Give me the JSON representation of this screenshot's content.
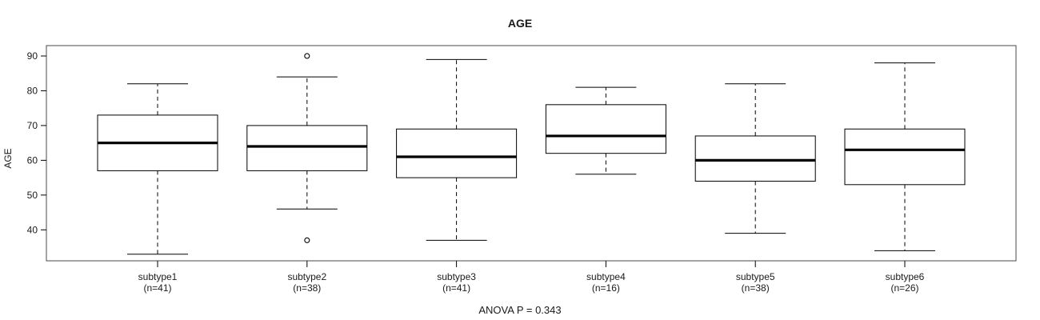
{
  "chart_data": {
    "type": "boxplot",
    "title": "AGE",
    "ylabel": "AGE",
    "xlabel": "",
    "annotation": "ANOVA P = 0.343",
    "yticks": [
      40,
      50,
      60,
      70,
      80,
      90
    ],
    "ylim": [
      31,
      93
    ],
    "grid": false,
    "legend": "none",
    "categories": [
      "subtype1",
      "subtype2",
      "subtype3",
      "subtype4",
      "subtype5",
      "subtype6"
    ],
    "counts": [
      "(n=41)",
      "(n=38)",
      "(n=41)",
      "(n=16)",
      "(n=38)",
      "(n=26)"
    ],
    "series": [
      {
        "name": "subtype1",
        "n": 41,
        "whisker_low": 33,
        "q1": 57,
        "median": 65,
        "q3": 73,
        "whisker_high": 82,
        "outliers": []
      },
      {
        "name": "subtype2",
        "n": 38,
        "whisker_low": 46,
        "q1": 57,
        "median": 64,
        "q3": 70,
        "whisker_high": 84,
        "outliers": [
          90,
          37
        ]
      },
      {
        "name": "subtype3",
        "n": 41,
        "whisker_low": 37,
        "q1": 55,
        "median": 61,
        "q3": 69,
        "whisker_high": 89,
        "outliers": []
      },
      {
        "name": "subtype4",
        "n": 16,
        "whisker_low": 56,
        "q1": 62,
        "median": 67,
        "q3": 76,
        "whisker_high": 81,
        "outliers": []
      },
      {
        "name": "subtype5",
        "n": 38,
        "whisker_low": 39,
        "q1": 54,
        "median": 60,
        "q3": 67,
        "whisker_high": 82,
        "outliers": []
      },
      {
        "name": "subtype6",
        "n": 26,
        "whisker_low": 34,
        "q1": 53,
        "median": 63,
        "q3": 69,
        "whisker_high": 88,
        "outliers": []
      }
    ],
    "colors": {
      "line": "#000000",
      "frame": "#4a4a4a",
      "background": "#ffffff"
    }
  }
}
